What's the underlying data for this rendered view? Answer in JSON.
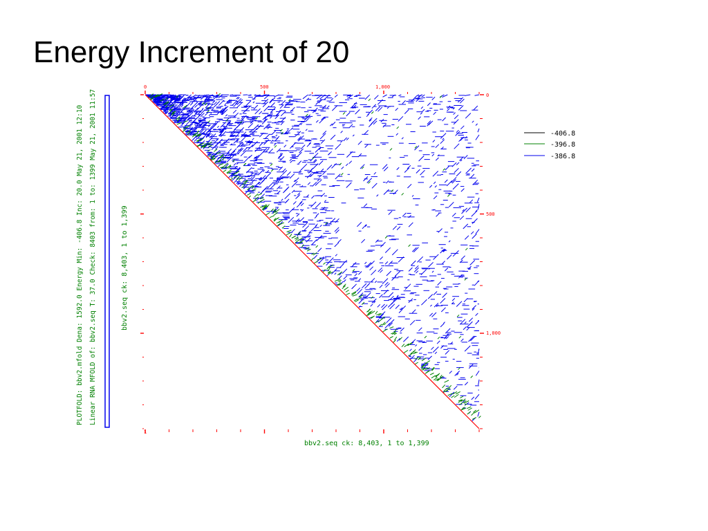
{
  "slide": {
    "title": "Energy Increment of 20"
  },
  "colors": {
    "axis": "#ff0000",
    "black_series": "#000000",
    "green_series": "#008000",
    "blue_series": "#0000ee",
    "label_green": "#008000"
  },
  "side_notes": {
    "line1": "PLOTFOLD: bbv2.mfold  Dena: 1592.0  Energy Min: -406.8 Inc: 20.0  May 21, 2001 12:10",
    "line2": "Linear RNA MFOLD of: bbv2.seq T: 37.0 Check: 8403 from: 1 to: 1399  May 21, 2001 11:57"
  },
  "chart_data": {
    "type": "heatmap",
    "title": "",
    "xlabel": "bbv2.seq ck: 8,403, 1 to 1,399",
    "ylabel": "bbv2.seq ck: 8,403, 1 to 1,399",
    "x_range": [
      1,
      1399
    ],
    "y_range": [
      1,
      1399
    ],
    "x_ticks_top": [
      "0",
      "500",
      "1,000"
    ],
    "y_ticks_right": [
      "0",
      "500",
      "1,000"
    ],
    "bottom_tick_label": "1",
    "legend_position": "right",
    "series": [
      {
        "name": "-406.8",
        "color": "#000000"
      },
      {
        "name": "-396.8",
        "color": "#008000"
      },
      {
        "name": "-386.8",
        "color": "#0000ee"
      }
    ]
  }
}
